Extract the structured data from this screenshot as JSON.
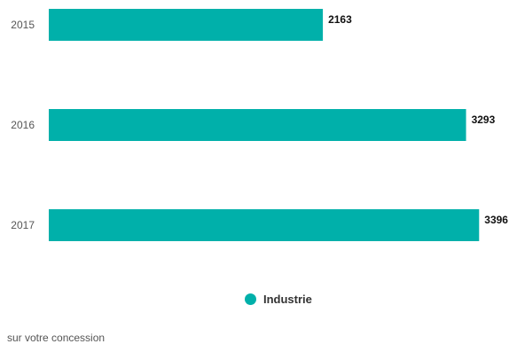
{
  "chart_data": {
    "type": "bar",
    "orientation": "horizontal",
    "categories": [
      "2015",
      "2016",
      "2017"
    ],
    "series": [
      {
        "name": "Industrie",
        "values": [
          2163,
          3293,
          3396
        ],
        "color": "#00b0aa"
      }
    ],
    "xlim": [
      0,
      3450
    ],
    "grid": false,
    "legend_position": "bottom-center"
  },
  "footnote": "sur votre concession"
}
